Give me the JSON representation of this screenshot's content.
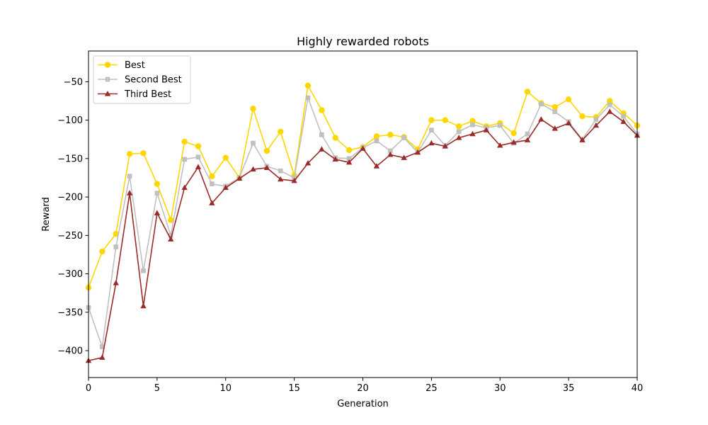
{
  "chart_data": {
    "type": "line",
    "title": "Highly rewarded robots",
    "xlabel": "Generation",
    "ylabel": "Reward",
    "xlim": [
      0,
      40
    ],
    "ylim": [
      -435,
      -10
    ],
    "xticks": [
      0,
      5,
      10,
      15,
      20,
      25,
      30,
      35,
      40
    ],
    "yticks": [
      -400,
      -350,
      -300,
      -250,
      -200,
      -150,
      -100,
      -50
    ],
    "grid": false,
    "legend_position": "top-left",
    "x": [
      0,
      1,
      2,
      3,
      4,
      5,
      6,
      7,
      8,
      9,
      10,
      11,
      12,
      13,
      14,
      15,
      16,
      17,
      18,
      19,
      20,
      21,
      22,
      23,
      24,
      25,
      26,
      27,
      28,
      29,
      30,
      31,
      32,
      33,
      34,
      35,
      36,
      37,
      38,
      39,
      40
    ],
    "series": [
      {
        "name": "Best",
        "color": "#FFD700",
        "marker": "circle",
        "values": [
          -318,
          -271,
          -248,
          -144,
          -143,
          -183,
          -230,
          -128,
          -134,
          -173,
          -149,
          -175,
          -85,
          -140,
          -115,
          -172,
          -55,
          -87,
          -123,
          -139,
          -135,
          -121,
          -119,
          -122,
          -138,
          -100,
          -100,
          -108,
          -101,
          -108,
          -104,
          -117,
          -63,
          -78,
          -83,
          -73,
          -95,
          -96,
          -75,
          -91,
          -107
        ]
      },
      {
        "name": "Second Best",
        "color": "#C0C0C0",
        "marker": "square",
        "values": [
          -344,
          -395,
          -265,
          -173,
          -296,
          -195,
          -250,
          -151,
          -148,
          -183,
          -186,
          -175,
          -130,
          -160,
          -166,
          -175,
          -71,
          -119,
          -149,
          -150,
          -136,
          -127,
          -140,
          -123,
          -142,
          -113,
          -133,
          -115,
          -106,
          -110,
          -107,
          -130,
          -118,
          -79,
          -89,
          -102,
          -125,
          -99,
          -80,
          -95,
          -118
        ]
      },
      {
        "name": "Third Best",
        "color": "#9B2A2A",
        "marker": "triangle",
        "values": [
          -413,
          -409,
          -312,
          -195,
          -342,
          -221,
          -255,
          -188,
          -161,
          -208,
          -188,
          -176,
          -164,
          -162,
          -177,
          -179,
          -156,
          -138,
          -151,
          -155,
          -137,
          -160,
          -145,
          -149,
          -142,
          -130,
          -134,
          -123,
          -118,
          -113,
          -133,
          -129,
          -126,
          -99,
          -111,
          -104,
          -126,
          -107,
          -89,
          -102,
          -120
        ]
      }
    ]
  }
}
